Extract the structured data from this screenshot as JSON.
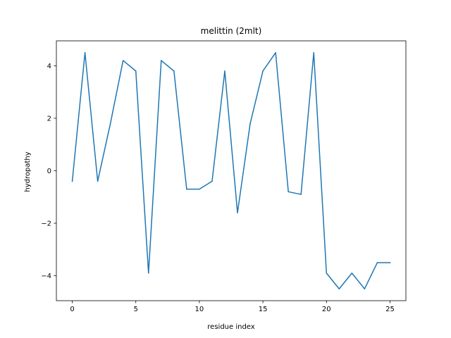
{
  "chart_data": {
    "type": "line",
    "title": "melittin (2mlt)",
    "xlabel": "residue index",
    "ylabel": "hydropathy",
    "xlim": [
      -1.25,
      26.25
    ],
    "ylim": [
      -4.95,
      4.95
    ],
    "xticks": [
      0,
      5,
      10,
      15,
      20,
      25
    ],
    "yticks": [
      -4,
      -2,
      0,
      2,
      4
    ],
    "xtick_labels": [
      "0",
      "5",
      "10",
      "15",
      "20",
      "25"
    ],
    "ytick_labels": [
      "−4",
      "−2",
      "0",
      "2",
      "4"
    ],
    "grid": false,
    "legend": "none",
    "series": [
      {
        "color": "#1f77b4",
        "x": [
          0,
          1,
          2,
          3,
          4,
          5,
          6,
          7,
          8,
          9,
          10,
          11,
          12,
          13,
          14,
          15,
          16,
          17,
          18,
          19,
          20,
          21,
          22,
          23,
          24,
          25
        ],
        "y": [
          -0.4,
          4.5,
          -0.4,
          1.8,
          4.2,
          3.8,
          -3.9,
          4.2,
          3.8,
          -0.7,
          -0.7,
          -0.4,
          3.8,
          -1.6,
          1.8,
          3.8,
          4.5,
          -0.8,
          -0.9,
          4.5,
          -3.9,
          -4.5,
          -3.9,
          -4.5,
          -3.5,
          -3.5
        ]
      }
    ]
  }
}
